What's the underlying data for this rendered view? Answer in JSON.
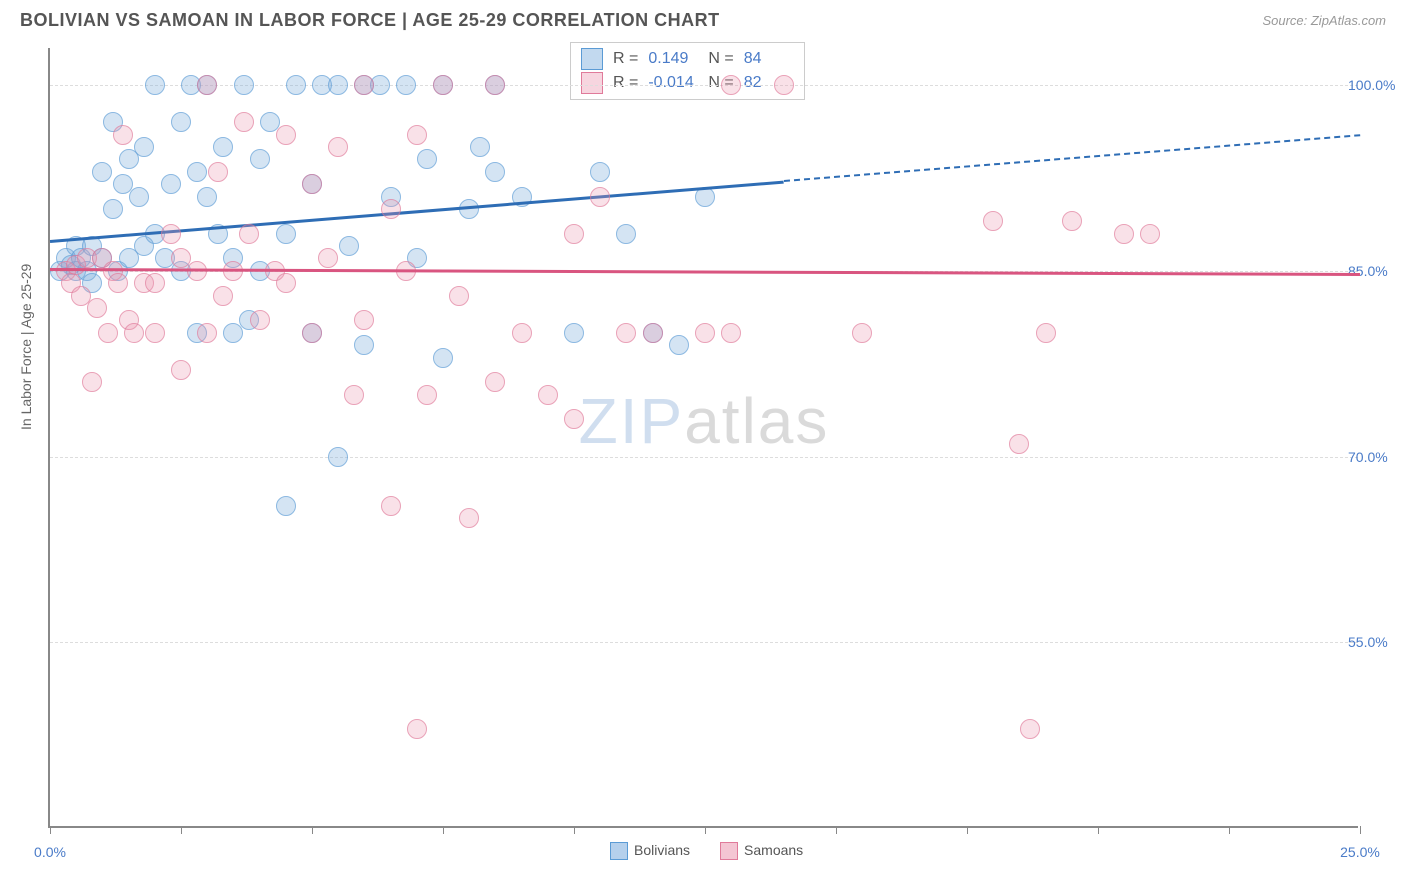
{
  "header": {
    "title": "BOLIVIAN VS SAMOAN IN LABOR FORCE | AGE 25-29 CORRELATION CHART",
    "source": "Source: ZipAtlas.com"
  },
  "chart": {
    "type": "scatter",
    "ylabel": "In Labor Force | Age 25-29",
    "xlim": [
      0,
      25
    ],
    "ylim": [
      40,
      103
    ],
    "xtick_positions": [
      0,
      2.5,
      5,
      7.5,
      10,
      12.5,
      15,
      17.5,
      20,
      22.5,
      25
    ],
    "xtick_labels": {
      "0": "0.0%",
      "25": "25.0%"
    },
    "ytick_positions": [
      55,
      70,
      85,
      100
    ],
    "ytick_labels": {
      "55": "55.0%",
      "70": "70.0%",
      "85": "85.0%",
      "100": "100.0%"
    },
    "background_color": "#ffffff",
    "grid_color": "#dddddd",
    "axis_color": "#888888",
    "label_color": "#4a7bc8",
    "marker_radius": 10,
    "series": [
      {
        "name": "Bolivians",
        "color_fill": "rgba(120,170,220,0.45)",
        "color_stroke": "#5b9bd5",
        "trend_color": "#2e6db5",
        "R": "0.149",
        "N": "84",
        "trend": {
          "x1": 0,
          "y1": 87.5,
          "x2_solid": 14,
          "y2_solid": 92.3,
          "x2_dash": 25,
          "y2_dash": 96.0
        },
        "points": [
          [
            0.2,
            85
          ],
          [
            0.3,
            86
          ],
          [
            0.4,
            85.5
          ],
          [
            0.5,
            87
          ],
          [
            0.5,
            85
          ],
          [
            0.6,
            86
          ],
          [
            0.7,
            85
          ],
          [
            0.8,
            84
          ],
          [
            0.8,
            87
          ],
          [
            1.0,
            93
          ],
          [
            1.0,
            86
          ],
          [
            1.2,
            97
          ],
          [
            1.2,
            90
          ],
          [
            1.3,
            85
          ],
          [
            1.4,
            92
          ],
          [
            1.5,
            86
          ],
          [
            1.5,
            94
          ],
          [
            1.7,
            91
          ],
          [
            1.8,
            95
          ],
          [
            1.8,
            87
          ],
          [
            2.0,
            100
          ],
          [
            2.0,
            88
          ],
          [
            2.2,
            86
          ],
          [
            2.3,
            92
          ],
          [
            2.5,
            97
          ],
          [
            2.5,
            85
          ],
          [
            2.7,
            100
          ],
          [
            2.8,
            80
          ],
          [
            2.8,
            93
          ],
          [
            3.0,
            91
          ],
          [
            3.0,
            100
          ],
          [
            3.2,
            88
          ],
          [
            3.3,
            95
          ],
          [
            3.5,
            80
          ],
          [
            3.5,
            86
          ],
          [
            3.7,
            100
          ],
          [
            3.8,
            81
          ],
          [
            4.0,
            85
          ],
          [
            4.0,
            94
          ],
          [
            4.2,
            97
          ],
          [
            4.5,
            88
          ],
          [
            4.5,
            66
          ],
          [
            4.7,
            100
          ],
          [
            5.0,
            92
          ],
          [
            5.0,
            80
          ],
          [
            5.2,
            100
          ],
          [
            5.5,
            70
          ],
          [
            5.5,
            100
          ],
          [
            5.7,
            87
          ],
          [
            6.0,
            100
          ],
          [
            6.0,
            79
          ],
          [
            6.3,
            100
          ],
          [
            6.5,
            91
          ],
          [
            6.8,
            100
          ],
          [
            7.0,
            86
          ],
          [
            7.2,
            94
          ],
          [
            7.5,
            100
          ],
          [
            7.5,
            78
          ],
          [
            8.0,
            90
          ],
          [
            8.2,
            95
          ],
          [
            8.5,
            100
          ],
          [
            8.5,
            93
          ],
          [
            9.0,
            91
          ],
          [
            10.0,
            80
          ],
          [
            10.5,
            93
          ],
          [
            11.0,
            88
          ],
          [
            11.5,
            80
          ],
          [
            12.0,
            79
          ],
          [
            12.5,
            91
          ]
        ]
      },
      {
        "name": "Samoans",
        "color_fill": "rgba(235,150,175,0.40)",
        "color_stroke": "#e07a9a",
        "trend_color": "#d95580",
        "R": "-0.014",
        "N": "82",
        "trend": {
          "x1": 0,
          "y1": 85.2,
          "x2_solid": 25,
          "y2_solid": 84.8,
          "x2_dash": 25,
          "y2_dash": 84.8
        },
        "points": [
          [
            0.3,
            85
          ],
          [
            0.4,
            84
          ],
          [
            0.5,
            85.5
          ],
          [
            0.6,
            83
          ],
          [
            0.7,
            86
          ],
          [
            0.8,
            76
          ],
          [
            0.9,
            82
          ],
          [
            1.0,
            86
          ],
          [
            1.1,
            80
          ],
          [
            1.2,
            85
          ],
          [
            1.3,
            84
          ],
          [
            1.4,
            96
          ],
          [
            1.5,
            81
          ],
          [
            1.6,
            80
          ],
          [
            1.8,
            84
          ],
          [
            2.0,
            84
          ],
          [
            2.0,
            80
          ],
          [
            2.3,
            88
          ],
          [
            2.5,
            86
          ],
          [
            2.5,
            77
          ],
          [
            2.8,
            85
          ],
          [
            3.0,
            100
          ],
          [
            3.0,
            80
          ],
          [
            3.2,
            93
          ],
          [
            3.3,
            83
          ],
          [
            3.5,
            85
          ],
          [
            3.7,
            97
          ],
          [
            3.8,
            88
          ],
          [
            4.0,
            81
          ],
          [
            4.3,
            85
          ],
          [
            4.5,
            96
          ],
          [
            4.5,
            84
          ],
          [
            5.0,
            92
          ],
          [
            5.0,
            80
          ],
          [
            5.3,
            86
          ],
          [
            5.5,
            95
          ],
          [
            5.8,
            75
          ],
          [
            6.0,
            100
          ],
          [
            6.0,
            81
          ],
          [
            6.5,
            66
          ],
          [
            6.5,
            90
          ],
          [
            6.8,
            85
          ],
          [
            7.0,
            96
          ],
          [
            7.0,
            48
          ],
          [
            7.2,
            75
          ],
          [
            7.5,
            100
          ],
          [
            7.8,
            83
          ],
          [
            8.0,
            65
          ],
          [
            8.5,
            100
          ],
          [
            8.5,
            76
          ],
          [
            9.0,
            80
          ],
          [
            9.5,
            75
          ],
          [
            10.0,
            88
          ],
          [
            10.0,
            73
          ],
          [
            10.5,
            91
          ],
          [
            11.0,
            80
          ],
          [
            11.5,
            80
          ],
          [
            12.5,
            80
          ],
          [
            13.0,
            100
          ],
          [
            13.0,
            80
          ],
          [
            14.0,
            100
          ],
          [
            15.5,
            80
          ],
          [
            18.0,
            89
          ],
          [
            18.5,
            71
          ],
          [
            18.7,
            48
          ],
          [
            19.0,
            80
          ],
          [
            19.5,
            89
          ],
          [
            20.5,
            88
          ],
          [
            21.0,
            88
          ]
        ]
      }
    ],
    "bottom_legend": [
      {
        "label": "Bolivians",
        "fill": "rgba(120,170,220,0.55)",
        "stroke": "#5b9bd5"
      },
      {
        "label": "Samoans",
        "fill": "rgba(235,150,175,0.55)",
        "stroke": "#e07a9a"
      }
    ],
    "watermark": {
      "part1": "ZIP",
      "part2": "atlas"
    }
  }
}
